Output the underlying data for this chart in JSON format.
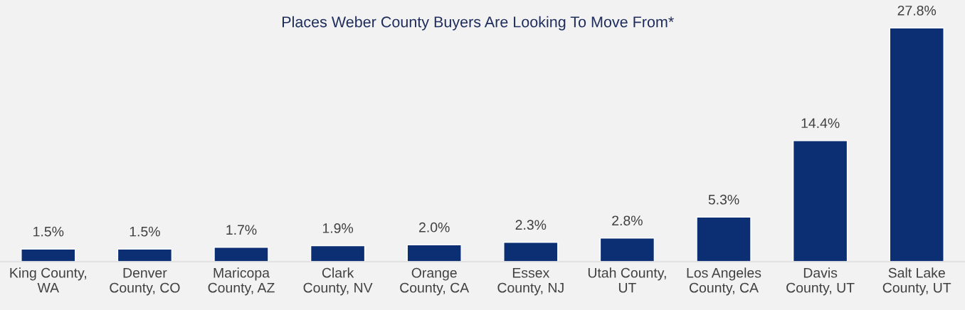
{
  "chart_data": {
    "type": "bar",
    "title": "Places Weber County Buyers Are Looking To Move From*",
    "categories": [
      "King County,\nWA",
      "Denver\nCounty, CO",
      "Maricopa\nCounty, AZ",
      "Clark\nCounty, NV",
      "Orange\nCounty, CA",
      "Essex\nCounty, NJ",
      "Utah County,\nUT",
      "Los Angeles\nCounty, CA",
      "Davis\nCounty, UT",
      "Salt Lake\nCounty, UT"
    ],
    "values": [
      1.5,
      1.5,
      1.7,
      1.9,
      2.0,
      2.3,
      2.8,
      5.3,
      14.4,
      27.8
    ],
    "value_labels": [
      "1.5%",
      "1.5%",
      "1.7%",
      "1.9%",
      "2.0%",
      "2.3%",
      "2.8%",
      "5.3%",
      "14.4%",
      "27.8%"
    ],
    "color": "#0c2f73",
    "grid": false,
    "legend": false
  }
}
